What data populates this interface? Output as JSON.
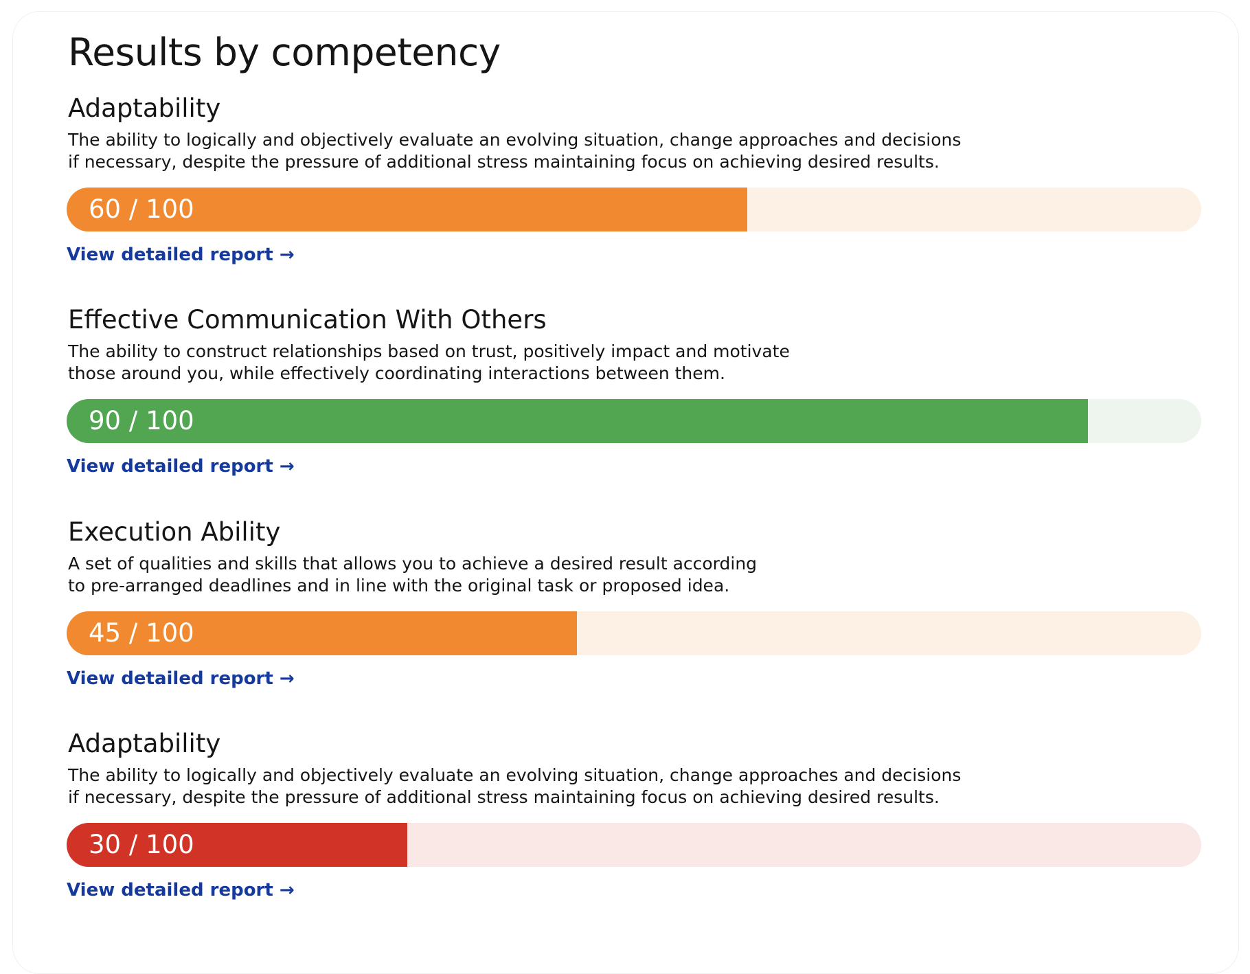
{
  "page": {
    "title": "Results by competency"
  },
  "competencies": [
    {
      "name": "Adaptability",
      "description_lines": [
        "The ability to logically and objectively evaluate an evolving situation, change approaches and decisions",
        "if necessary, despite the pressure of additional stress maintaining focus on achieving desired results."
      ],
      "score_label": "60 / 100",
      "score": 60,
      "max": 100,
      "color": "#F0892F",
      "track_color": "#FDF1E6",
      "link_label": "View detailed report →"
    },
    {
      "name": "Effective Communication With Others",
      "description_lines": [
        "The ability to construct relationships based on trust, positively impact and motivate",
        "those around you, while effectively coordinating interactions between them."
      ],
      "score_label": "90 / 100",
      "score": 90,
      "max": 100,
      "color": "#52A651",
      "track_color": "#EEF5EE",
      "link_label": "View detailed report →"
    },
    {
      "name": "Execution Ability",
      "description_lines": [
        "A set of qualities and skills that allows you to achieve a desired result according",
        "to pre-arranged deadlines and in line with the original task or proposed idea."
      ],
      "score_label": "45 / 100",
      "score": 45,
      "max": 100,
      "color": "#F0892F",
      "track_color": "#FDF1E6",
      "link_label": "View detailed report →"
    },
    {
      "name": "Adaptability",
      "description_lines": [
        "The ability to logically and objectively evaluate an evolving situation, change approaches and decisions",
        "if necessary, despite the pressure of additional stress maintaining focus on achieving desired results."
      ],
      "score_label": "30 / 100",
      "score": 30,
      "max": 100,
      "color": "#D13426",
      "track_color": "#F9E8E6",
      "link_label": "View detailed report →"
    }
  ]
}
